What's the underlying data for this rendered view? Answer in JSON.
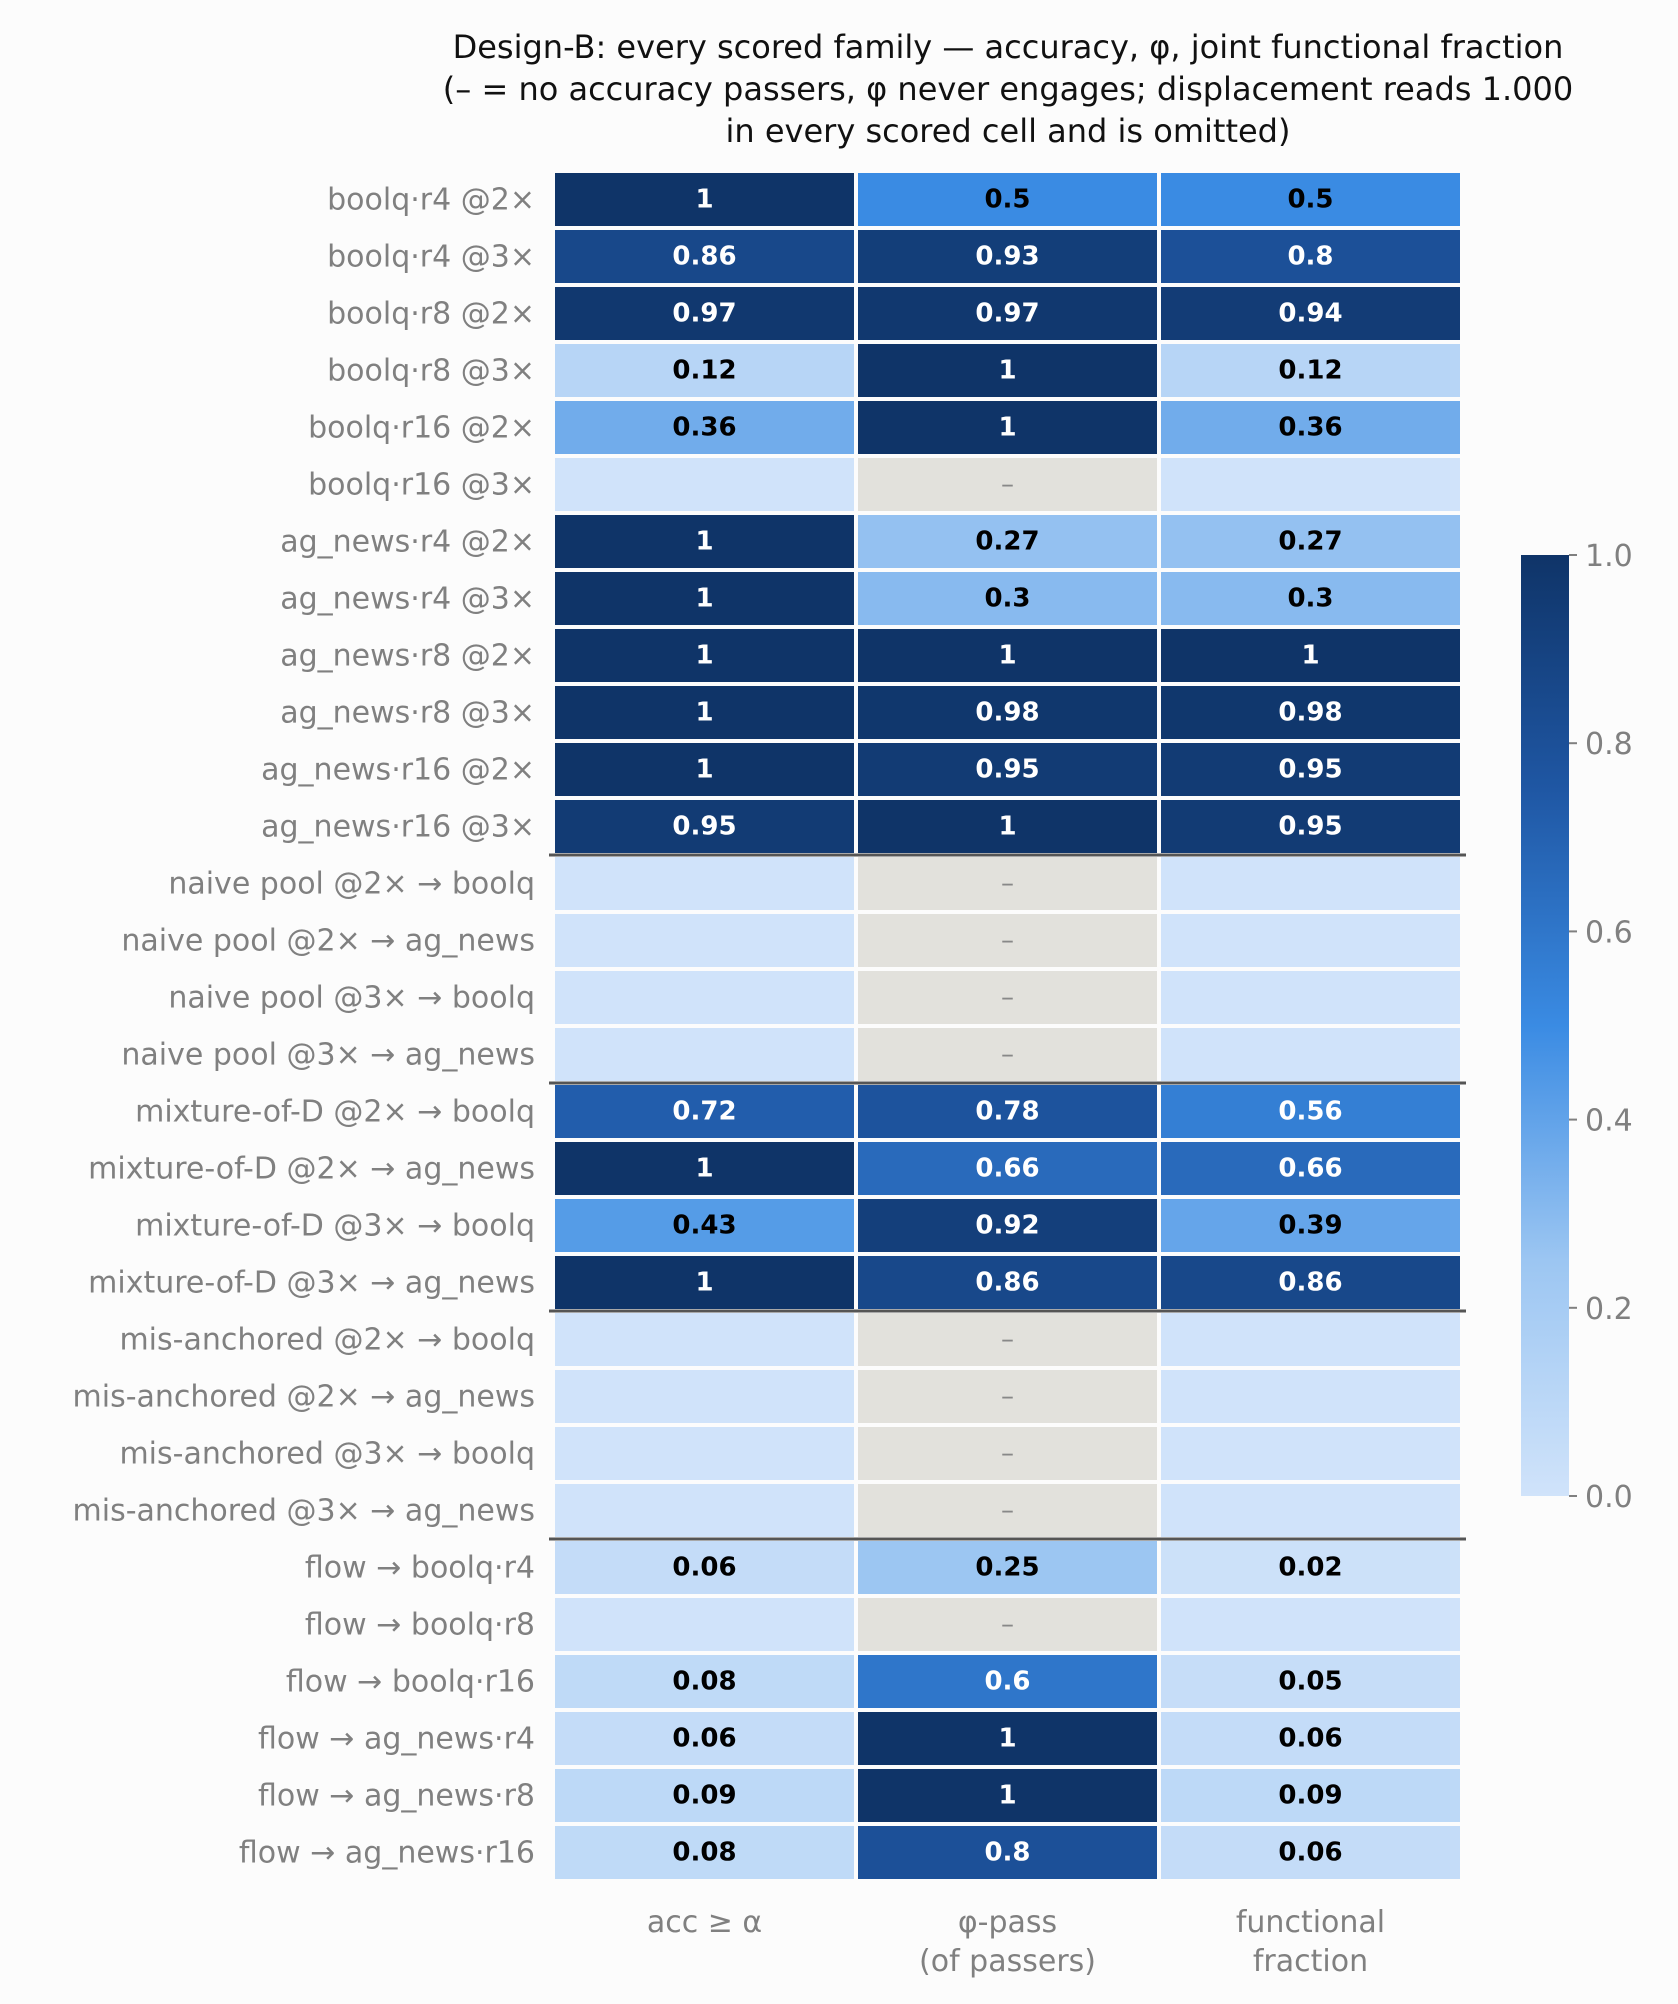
{
  "chart_data": {
    "type": "heatmap",
    "title_lines": [
      "Design-B: every scored family — accuracy, φ, joint functional fraction",
      "(– = no accuracy passers, φ never engages; displacement reads 1.000",
      "in every scored cell and is omitted)"
    ],
    "columns": [
      {
        "lines": [
          "acc ≥ α"
        ]
      },
      {
        "lines": [
          "φ-pass",
          "(of passers)"
        ]
      },
      {
        "lines": [
          "functional",
          "fraction"
        ]
      }
    ],
    "missing_marker": "–",
    "color_range": [
      0,
      1
    ],
    "colorbar_ticks": [
      "0.0",
      "0.2",
      "0.4",
      "0.6",
      "0.8",
      "1.0"
    ],
    "colors": {
      "low": "#d0e3fa",
      "mid": "#3a8be3",
      "high": "#0f3468",
      "missing": "#e2e1dc"
    },
    "group_separators_after_row": [
      11,
      15,
      19,
      23
    ],
    "rows": [
      {
        "label": "boolq·r4 @2×",
        "values": [
          1,
          0.5,
          0.5
        ],
        "texts": [
          "1",
          "0.5",
          "0.5"
        ]
      },
      {
        "label": "boolq·r4 @3×",
        "values": [
          0.86,
          0.93,
          0.8
        ],
        "texts": [
          "0.86",
          "0.93",
          "0.8"
        ]
      },
      {
        "label": "boolq·r8 @2×",
        "values": [
          0.97,
          0.97,
          0.94
        ],
        "texts": [
          "0.97",
          "0.97",
          "0.94"
        ]
      },
      {
        "label": "boolq·r8 @3×",
        "values": [
          0.12,
          1,
          0.12
        ],
        "texts": [
          "0.12",
          "1",
          "0.12"
        ]
      },
      {
        "label": "boolq·r16 @2×",
        "values": [
          0.36,
          1,
          0.36
        ],
        "texts": [
          "0.36",
          "1",
          "0.36"
        ]
      },
      {
        "label": "boolq·r16 @3×",
        "values": [
          0,
          null,
          0
        ],
        "texts": [
          "",
          "–",
          ""
        ]
      },
      {
        "label": "ag_news·r4 @2×",
        "values": [
          1,
          0.27,
          0.27
        ],
        "texts": [
          "1",
          "0.27",
          "0.27"
        ]
      },
      {
        "label": "ag_news·r4 @3×",
        "values": [
          1,
          0.3,
          0.3
        ],
        "texts": [
          "1",
          "0.3",
          "0.3"
        ]
      },
      {
        "label": "ag_news·r8 @2×",
        "values": [
          1,
          1,
          1
        ],
        "texts": [
          "1",
          "1",
          "1"
        ]
      },
      {
        "label": "ag_news·r8 @3×",
        "values": [
          1,
          0.98,
          0.98
        ],
        "texts": [
          "1",
          "0.98",
          "0.98"
        ]
      },
      {
        "label": "ag_news·r16 @2×",
        "values": [
          1,
          0.95,
          0.95
        ],
        "texts": [
          "1",
          "0.95",
          "0.95"
        ]
      },
      {
        "label": "ag_news·r16 @3×",
        "values": [
          0.95,
          1,
          0.95
        ],
        "texts": [
          "0.95",
          "1",
          "0.95"
        ]
      },
      {
        "label": "naive pool @2× → boolq",
        "values": [
          0,
          null,
          0
        ],
        "texts": [
          "",
          "–",
          ""
        ]
      },
      {
        "label": "naive pool @2× → ag_news",
        "values": [
          0,
          null,
          0
        ],
        "texts": [
          "",
          "–",
          ""
        ]
      },
      {
        "label": "naive pool @3× → boolq",
        "values": [
          0,
          null,
          0
        ],
        "texts": [
          "",
          "–",
          ""
        ]
      },
      {
        "label": "naive pool @3× → ag_news",
        "values": [
          0,
          null,
          0
        ],
        "texts": [
          "",
          "–",
          ""
        ]
      },
      {
        "label": "mixture-of-D @2× → boolq",
        "values": [
          0.72,
          0.78,
          0.56
        ],
        "texts": [
          "0.72",
          "0.78",
          "0.56"
        ]
      },
      {
        "label": "mixture-of-D @2× → ag_news",
        "values": [
          1,
          0.66,
          0.66
        ],
        "texts": [
          "1",
          "0.66",
          "0.66"
        ]
      },
      {
        "label": "mixture-of-D @3× → boolq",
        "values": [
          0.43,
          0.92,
          0.39
        ],
        "texts": [
          "0.43",
          "0.92",
          "0.39"
        ]
      },
      {
        "label": "mixture-of-D @3× → ag_news",
        "values": [
          1,
          0.86,
          0.86
        ],
        "texts": [
          "1",
          "0.86",
          "0.86"
        ]
      },
      {
        "label": "mis-anchored @2× → boolq",
        "values": [
          0,
          null,
          0
        ],
        "texts": [
          "",
          "–",
          ""
        ]
      },
      {
        "label": "mis-anchored @2× → ag_news",
        "values": [
          0,
          null,
          0
        ],
        "texts": [
          "",
          "–",
          ""
        ]
      },
      {
        "label": "mis-anchored @3× → boolq",
        "values": [
          0,
          null,
          0
        ],
        "texts": [
          "",
          "–",
          ""
        ]
      },
      {
        "label": "mis-anchored @3× → ag_news",
        "values": [
          0,
          null,
          0
        ],
        "texts": [
          "",
          "–",
          ""
        ]
      },
      {
        "label": "flow → boolq·r4",
        "values": [
          0.06,
          0.25,
          0.02
        ],
        "texts": [
          "0.06",
          "0.25",
          "0.02"
        ]
      },
      {
        "label": "flow → boolq·r8",
        "values": [
          0,
          null,
          0
        ],
        "texts": [
          "",
          "–",
          ""
        ]
      },
      {
        "label": "flow → boolq·r16",
        "values": [
          0.08,
          0.6,
          0.05
        ],
        "texts": [
          "0.08",
          "0.6",
          "0.05"
        ]
      },
      {
        "label": "flow → ag_news·r4",
        "values": [
          0.06,
          1,
          0.06
        ],
        "texts": [
          "0.06",
          "1",
          "0.06"
        ]
      },
      {
        "label": "flow → ag_news·r8",
        "values": [
          0.09,
          1,
          0.09
        ],
        "texts": [
          "0.09",
          "1",
          "0.09"
        ]
      },
      {
        "label": "flow → ag_news·r16",
        "values": [
          0.08,
          0.8,
          0.06
        ],
        "texts": [
          "0.08",
          "0.8",
          "0.06"
        ]
      }
    ]
  }
}
